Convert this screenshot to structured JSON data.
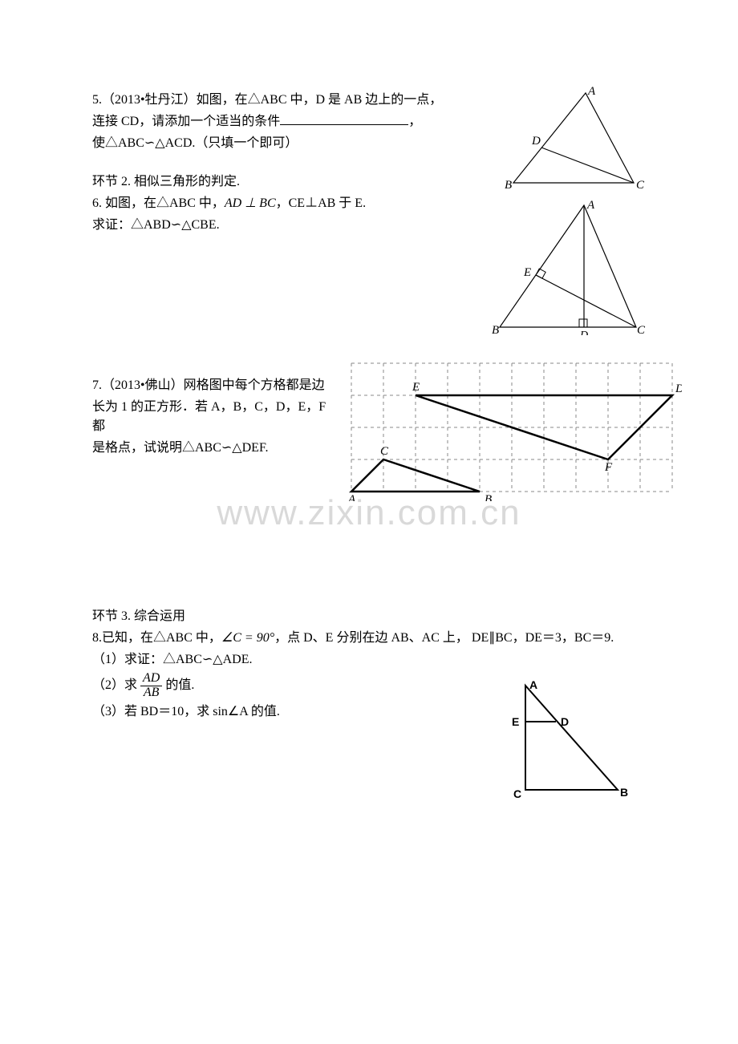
{
  "q5": {
    "text1": "5.（2013•牡丹江）如图，在△ABC 中，D 是 AB 边上的一点，",
    "text2_pre": "连接 CD，请添加一个适当的条件",
    "text2_post": "，",
    "text3": "使△ABC∽△ACD.（只填一个即可）",
    "fig": {
      "A": "A",
      "B": "B",
      "C": "C",
      "D": "D"
    }
  },
  "sec2_title": "环节 2. 相似三角形的判定.",
  "q6": {
    "text1_pre": "6. 如图，在△ABC 中，",
    "math1": "AD ⊥ BC",
    "text1_post": "，CE⊥AB 于 E.",
    "text2": "求证：△ABD∽△CBE.",
    "fig": {
      "A": "A",
      "B": "B",
      "C": "C",
      "D": "D",
      "E": "E"
    }
  },
  "q7": {
    "line1": "7.（2013•佛山）网格图中每个方格都是边",
    "line2": "长为 1 的正方形．若 A，B，C，D，E，F 都",
    "line3": "是格点，试说明△ABC∽△DEF.",
    "fig": {
      "A": "A",
      "B": "B",
      "C": "C",
      "D": "D",
      "E": "E",
      "F": "F",
      "cols": 10,
      "rows": 4,
      "cell": 40,
      "pts": {
        "A": [
          0,
          4
        ],
        "B": [
          4,
          4
        ],
        "C": [
          1,
          3
        ],
        "E": [
          2,
          1
        ],
        "D": [
          10,
          1
        ],
        "F": [
          8,
          3
        ]
      }
    }
  },
  "watermark": "www.zixin.com.cn",
  "sec3_title": "环节 3. 综合运用",
  "q8": {
    "line1_pre": "8.已知，在△ABC 中，",
    "math1": "∠C = 90°",
    "line1_mid": "，点 D、E 分别在边 AB、AC 上，  DE∥BC，DE＝3，BC＝9.",
    "p1": "（1）求证：△ABC∽△ADE.",
    "p2_pre": "（2）求 ",
    "frac_num": "AD",
    "frac_den": "AB",
    "p2_post": " 的值.",
    "p3_pre": "（3）若 BD＝10，求 ",
    "math3": "sin∠A",
    "p3_post": " 的值.",
    "fig": {
      "A": "A",
      "B": "B",
      "C": "C",
      "D": "D",
      "E": "E"
    }
  }
}
